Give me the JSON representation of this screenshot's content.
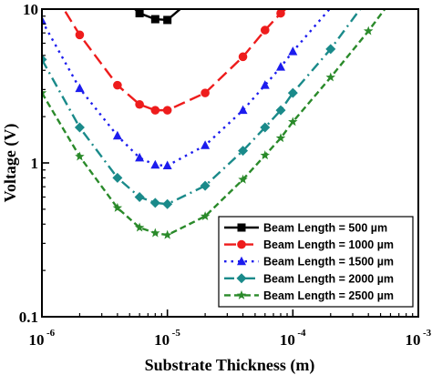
{
  "chart_data": {
    "type": "line",
    "xlabel": "Substrate Thickness (m)",
    "ylabel": "Voltage (V)",
    "x_scale": "log",
    "y_scale": "log",
    "xlim": [
      1e-06,
      0.001
    ],
    "ylim": [
      0.1,
      10
    ],
    "x_ticks": [
      {
        "base": "10",
        "exp": "-6"
      },
      {
        "base": "10",
        "exp": "-5"
      },
      {
        "base": "10",
        "exp": "-4"
      },
      {
        "base": "10",
        "exp": "-3"
      }
    ],
    "y_ticks": [
      "0.1",
      "1",
      "10"
    ],
    "y_tick_values": [
      0.1,
      1,
      10
    ],
    "legend_position": "bottom-right",
    "series": [
      {
        "name": "Beam Length = 500 µm",
        "color": "#000000",
        "marker": "square",
        "dash": "solid",
        "x": [
          4.3e-06,
          6e-06,
          8e-06,
          1e-05,
          1.3e-05
        ],
        "y": [
          12,
          9.4,
          8.6,
          8.5,
          10.2
        ],
        "marker_x": [
          6e-06,
          8e-06,
          1e-05
        ],
        "marker_y": [
          9.4,
          8.6,
          8.5
        ]
      },
      {
        "name": "Beam Length = 1000 µm",
        "color": "#ee1c1c",
        "marker": "circle",
        "dash": "long-dash",
        "x": [
          1.3e-06,
          2e-06,
          4e-06,
          6e-06,
          8e-06,
          1e-05,
          2e-05,
          4e-05,
          6e-05,
          8e-05,
          9e-05
        ],
        "y": [
          12,
          6.8,
          3.2,
          2.4,
          2.2,
          2.2,
          2.85,
          4.9,
          7.3,
          9.4,
          10.2
        ],
        "marker_x": [
          2e-06,
          4e-06,
          6e-06,
          8e-06,
          1e-05,
          2e-05,
          4e-05,
          6e-05,
          8e-05
        ],
        "marker_y": [
          6.8,
          3.2,
          2.4,
          2.2,
          2.2,
          2.85,
          4.9,
          7.3,
          9.4
        ]
      },
      {
        "name": "Beam Length = 1500 µm",
        "color": "#1c1cee",
        "marker": "triangle",
        "dash": "dot",
        "x": [
          1e-06,
          2e-06,
          4e-06,
          6e-06,
          8e-06,
          1e-05,
          2e-05,
          4e-05,
          6e-05,
          8e-05,
          0.0001,
          0.0002
        ],
        "y": [
          8.4,
          3.05,
          1.5,
          1.08,
          0.97,
          0.96,
          1.3,
          2.2,
          3.2,
          4.2,
          5.3,
          10.2
        ],
        "marker_x": [
          1e-06,
          2e-06,
          4e-06,
          6e-06,
          8e-06,
          1e-05,
          2e-05,
          4e-05,
          6e-05,
          8e-05,
          0.0001
        ],
        "marker_y": [
          8.4,
          3.05,
          1.5,
          1.08,
          0.97,
          0.96,
          1.3,
          2.2,
          3.2,
          4.2,
          5.3
        ]
      },
      {
        "name": "Beam Length = 2000 µm",
        "color": "#1a8a8a",
        "marker": "diamond",
        "dash": "dash-dot",
        "x": [
          1e-06,
          2e-06,
          4e-06,
          6e-06,
          8e-06,
          1e-05,
          2e-05,
          4e-05,
          6e-05,
          8e-05,
          0.0001,
          0.0002,
          0.00035
        ],
        "y": [
          4.7,
          1.7,
          0.8,
          0.6,
          0.55,
          0.54,
          0.71,
          1.2,
          1.7,
          2.2,
          2.85,
          5.5,
          10.2
        ],
        "marker_x": [
          1e-06,
          2e-06,
          4e-06,
          6e-06,
          8e-06,
          1e-05,
          2e-05,
          4e-05,
          6e-05,
          8e-05,
          0.0001,
          0.0002
        ],
        "marker_y": [
          4.7,
          1.7,
          0.8,
          0.6,
          0.55,
          0.54,
          0.71,
          1.2,
          1.7,
          2.2,
          2.85,
          5.5
        ]
      },
      {
        "name": "Beam Length = 2500 µm",
        "color": "#2a8a2a",
        "marker": "star",
        "dash": "dash",
        "x": [
          1e-06,
          2e-06,
          4e-06,
          6e-06,
          8e-06,
          1e-05,
          2e-05,
          4e-05,
          6e-05,
          8e-05,
          0.0001,
          0.0002,
          0.0004,
          0.00055
        ],
        "y": [
          2.85,
          1.1,
          0.51,
          0.38,
          0.35,
          0.34,
          0.45,
          0.78,
          1.12,
          1.45,
          1.85,
          3.6,
          7.2,
          10.2
        ],
        "marker_x": [
          1e-06,
          2e-06,
          4e-06,
          6e-06,
          8e-06,
          1e-05,
          2e-05,
          4e-05,
          6e-05,
          8e-05,
          0.0001,
          0.0002,
          0.0004
        ],
        "marker_y": [
          2.85,
          1.1,
          0.51,
          0.38,
          0.35,
          0.34,
          0.45,
          0.78,
          1.12,
          1.45,
          1.85,
          3.6,
          7.2
        ]
      }
    ]
  }
}
